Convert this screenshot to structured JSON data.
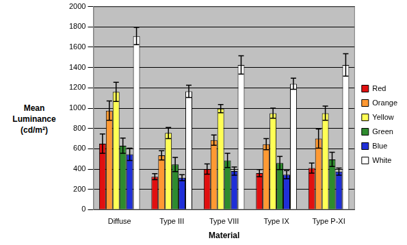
{
  "chart_data": {
    "type": "bar",
    "x_label": "Material",
    "y_label": "Mean Luminance (cd/m²)",
    "categories": [
      "Diffuse",
      "Type III",
      "Type VIII",
      "Type IX",
      "Type P-XI"
    ],
    "series": [
      {
        "name": "Red",
        "color": "#e01010",
        "values": [
          650,
          325,
          400,
          360,
          410
        ],
        "errors": [
          95,
          30,
          50,
          35,
          50
        ]
      },
      {
        "name": "Orange",
        "color": "#ff9933",
        "values": [
          975,
          535,
          685,
          645,
          700
        ],
        "errors": [
          95,
          45,
          50,
          55,
          95
        ]
      },
      {
        "name": "Yellow",
        "color": "#ffff55",
        "values": [
          1160,
          755,
          995,
          950,
          950
        ],
        "errors": [
          95,
          55,
          40,
          50,
          70
        ]
      },
      {
        "name": "Green",
        "color": "#2e8b2e",
        "values": [
          630,
          445,
          485,
          460,
          495
        ],
        "errors": [
          75,
          70,
          70,
          65,
          70
        ]
      },
      {
        "name": "Blue",
        "color": "#1f2fd8",
        "values": [
          545,
          315,
          380,
          345,
          375
        ],
        "errors": [
          60,
          30,
          40,
          40,
          35
        ]
      },
      {
        "name": "White",
        "color": "#ffffff",
        "values": [
          1710,
          1165,
          1425,
          1240,
          1425
        ],
        "errors": [
          85,
          60,
          90,
          55,
          110
        ]
      }
    ],
    "ylim": [
      0,
      2000
    ],
    "yticks": [
      0,
      200,
      400,
      600,
      800,
      1000,
      1200,
      1400,
      1600,
      1800,
      2000
    ],
    "grid": true,
    "legend": "right"
  }
}
